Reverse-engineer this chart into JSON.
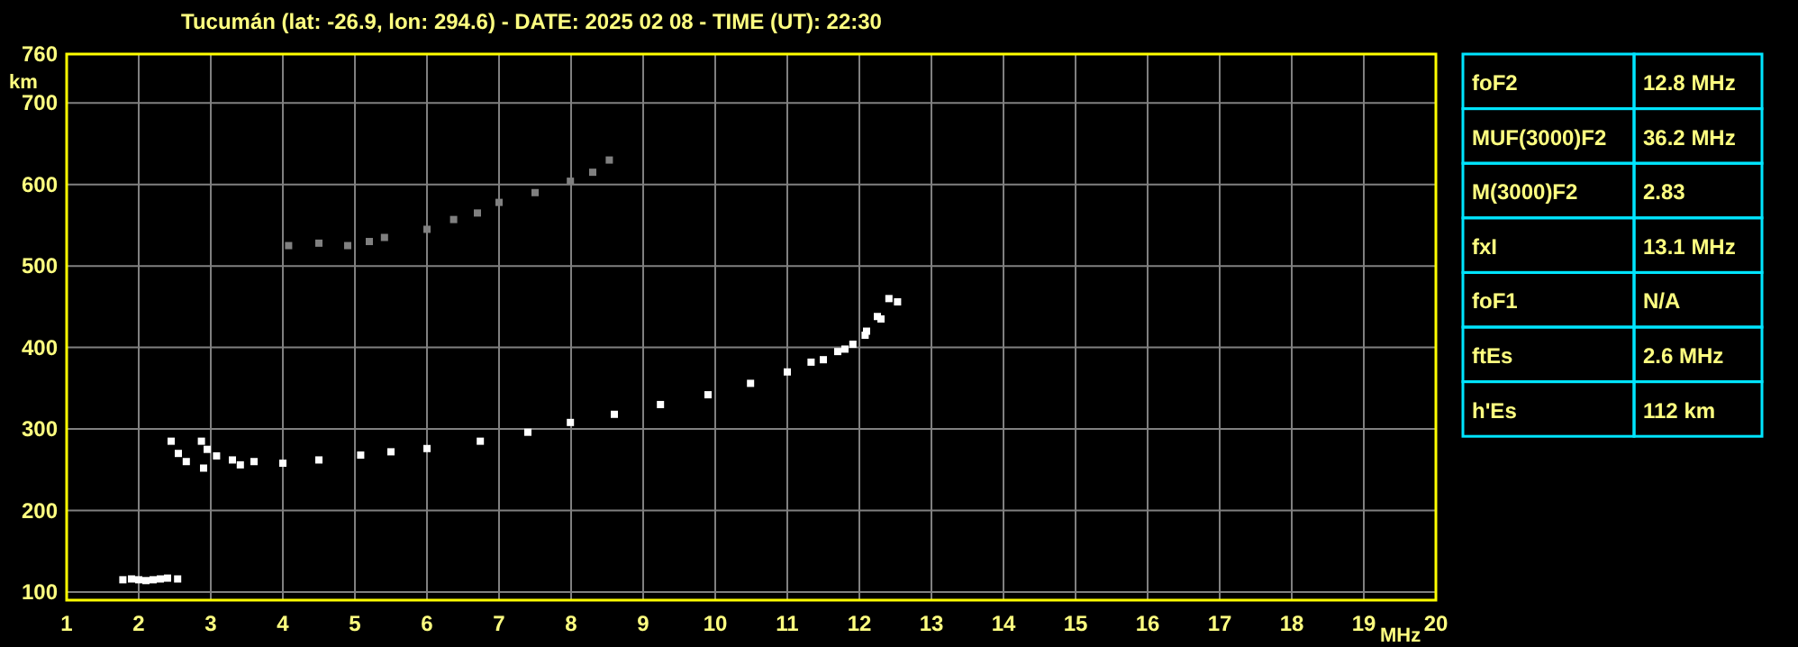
{
  "chart_data": [
    {
      "type": "scatter",
      "title": "Tucumán (lat: -26.9, lon: 294.6) - DATE: 2025 02 08 - TIME (UT): 22:30",
      "xlabel": "MHz",
      "ylabel": "km",
      "xlim": [
        1,
        20
      ],
      "ylim": [
        90,
        760
      ],
      "xticks": [
        1,
        2,
        3,
        4,
        5,
        6,
        7,
        8,
        9,
        10,
        11,
        12,
        13,
        14,
        15,
        16,
        17,
        18,
        19,
        20
      ],
      "yticks": [
        100,
        200,
        300,
        400,
        500,
        600,
        700,
        760
      ],
      "grid": true,
      "marker": "square",
      "series": [
        {
          "color": "#ffffff",
          "x": [
            2.45,
            2.55,
            2.66,
            2.9,
            3.41,
            4.0,
            4.5,
            5.08,
            5.5,
            6.0,
            6.74,
            7.4,
            7.99,
            8.6,
            9.24,
            9.9,
            10.49,
            11.0,
            11.33,
            11.7,
            11.91,
            12.1,
            12.25,
            12.41
          ],
          "values": [
            285,
            270,
            260,
            252,
            256,
            258,
            262,
            268,
            272,
            276,
            285,
            296,
            308,
            318,
            330,
            342,
            356,
            370,
            382,
            395,
            404,
            420,
            438,
            460
          ]
        },
        {
          "color": "#ffffff",
          "x": [
            2.87,
            2.95,
            3.08,
            3.3,
            3.6,
            11.5,
            11.8,
            12.08,
            12.3,
            12.53
          ],
          "values": [
            285,
            275,
            267,
            262,
            260,
            385,
            398,
            415,
            435,
            456
          ]
        },
        {
          "color": "#ffffff",
          "x": [
            1.78,
            1.9,
            2.0,
            2.1,
            2.2,
            2.3,
            2.4,
            2.54
          ],
          "values": [
            115,
            116,
            115,
            114,
            115,
            116,
            117,
            116
          ]
        },
        {
          "color": "#808080",
          "x": [
            4.08,
            4.5,
            4.9,
            5.2,
            5.41,
            6.0,
            6.37,
            6.7,
            7.0,
            7.5,
            7.99,
            8.3,
            8.53
          ],
          "values": [
            525,
            528,
            525,
            530,
            535,
            545,
            557,
            565,
            578,
            590,
            604,
            615,
            630
          ]
        }
      ]
    },
    {
      "type": "other",
      "categories": [
        "foF2",
        "MUF(3000)F2",
        "M(3000)F2",
        "fxI",
        "foF1",
        "ftEs",
        "h'Es"
      ],
      "value_labels": [
        "12.8 MHz",
        "36.2 MHz",
        "2.83",
        "13.1 MHz",
        "N/A",
        "2.6 MHz",
        "112 km"
      ]
    }
  ]
}
